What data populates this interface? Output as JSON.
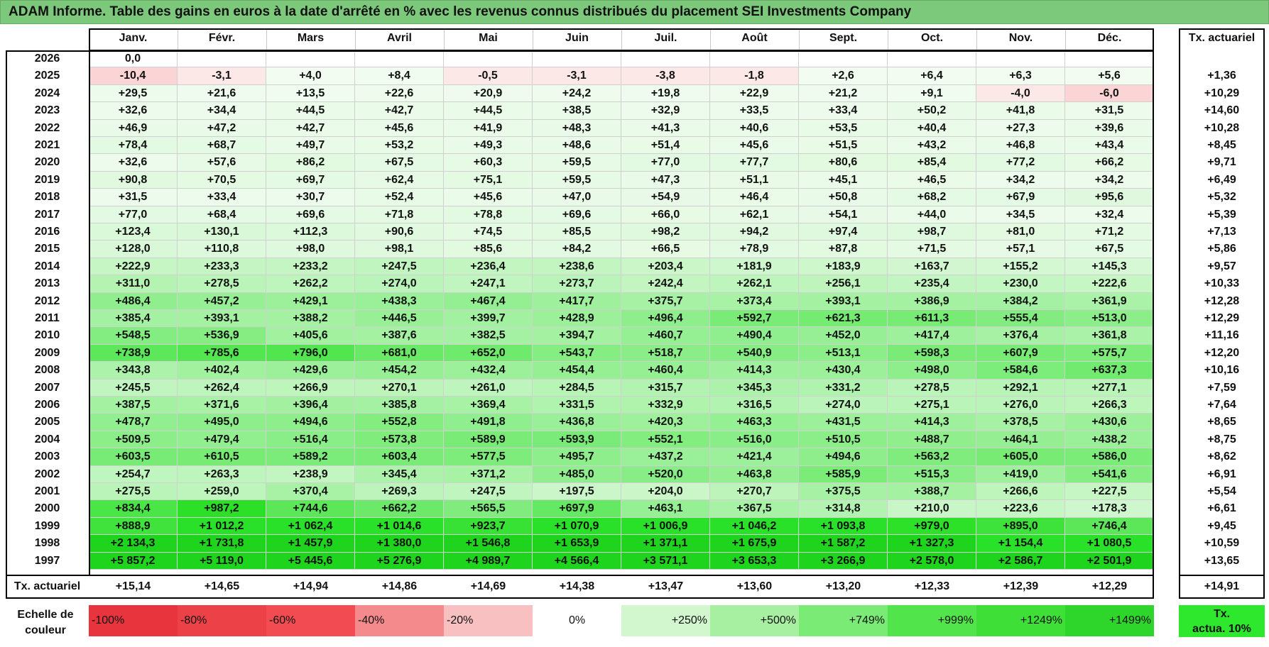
{
  "title": "ADAM Informe. Table des gains en euros à la date d'arrêté en % avec les revenus connus distribués du placement SEI Investments Company",
  "months": [
    "Janv.",
    "Févr.",
    "Mars",
    "Avril",
    "Mai",
    "Juin",
    "Juil.",
    "Août",
    "Sept.",
    "Oct.",
    "Nov.",
    "Déc."
  ],
  "annual_header": "Tx. actuariel",
  "rows": [
    {
      "year": "2026",
      "values": [
        "0,0",
        "",
        "",
        "",
        "",
        "",
        "",
        "",
        "",
        "",
        "",
        ""
      ],
      "annual": ""
    },
    {
      "year": "2025",
      "values": [
        "-10,4",
        "-3,1",
        "+4,0",
        "+8,4",
        "-0,5",
        "-3,1",
        "-3,8",
        "-1,8",
        "+2,6",
        "+6,4",
        "+6,3",
        "+5,6"
      ],
      "annual": "+1,36"
    },
    {
      "year": "2024",
      "values": [
        "+29,5",
        "+21,6",
        "+13,5",
        "+22,6",
        "+20,9",
        "+24,2",
        "+19,8",
        "+22,9",
        "+21,2",
        "+9,1",
        "-4,0",
        "-6,0"
      ],
      "annual": "+10,29"
    },
    {
      "year": "2023",
      "values": [
        "+32,6",
        "+34,4",
        "+44,5",
        "+42,7",
        "+44,5",
        "+38,5",
        "+32,9",
        "+33,5",
        "+33,4",
        "+50,2",
        "+41,8",
        "+31,5"
      ],
      "annual": "+14,60"
    },
    {
      "year": "2022",
      "values": [
        "+46,9",
        "+47,2",
        "+42,7",
        "+45,6",
        "+41,9",
        "+48,3",
        "+41,3",
        "+40,6",
        "+53,5",
        "+40,4",
        "+27,3",
        "+39,6"
      ],
      "annual": "+10,28"
    },
    {
      "year": "2021",
      "values": [
        "+78,4",
        "+68,7",
        "+49,7",
        "+53,2",
        "+49,3",
        "+48,6",
        "+51,4",
        "+45,6",
        "+51,5",
        "+43,2",
        "+46,8",
        "+43,4"
      ],
      "annual": "+8,45"
    },
    {
      "year": "2020",
      "values": [
        "+32,6",
        "+57,6",
        "+86,2",
        "+67,5",
        "+60,3",
        "+59,5",
        "+77,0",
        "+77,7",
        "+80,6",
        "+85,4",
        "+77,2",
        "+66,2"
      ],
      "annual": "+9,71"
    },
    {
      "year": "2019",
      "values": [
        "+90,8",
        "+70,5",
        "+69,7",
        "+62,4",
        "+75,1",
        "+59,5",
        "+47,3",
        "+51,1",
        "+45,1",
        "+46,5",
        "+34,2",
        "+34,2"
      ],
      "annual": "+6,49"
    },
    {
      "year": "2018",
      "values": [
        "+31,5",
        "+33,4",
        "+30,7",
        "+52,4",
        "+45,6",
        "+47,0",
        "+54,9",
        "+46,4",
        "+50,8",
        "+68,2",
        "+67,9",
        "+95,6"
      ],
      "annual": "+5,32"
    },
    {
      "year": "2017",
      "values": [
        "+77,0",
        "+68,4",
        "+69,6",
        "+71,8",
        "+78,8",
        "+69,6",
        "+66,0",
        "+62,1",
        "+54,1",
        "+44,0",
        "+34,5",
        "+32,4"
      ],
      "annual": "+5,39"
    },
    {
      "year": "2016",
      "values": [
        "+123,4",
        "+130,1",
        "+112,3",
        "+90,6",
        "+74,5",
        "+85,5",
        "+98,2",
        "+94,2",
        "+97,4",
        "+98,7",
        "+81,0",
        "+71,2"
      ],
      "annual": "+7,13"
    },
    {
      "year": "2015",
      "values": [
        "+128,0",
        "+110,8",
        "+98,0",
        "+98,1",
        "+85,6",
        "+84,2",
        "+66,5",
        "+78,9",
        "+87,8",
        "+71,5",
        "+57,1",
        "+67,5"
      ],
      "annual": "+5,86"
    },
    {
      "year": "2014",
      "values": [
        "+222,9",
        "+233,3",
        "+233,2",
        "+247,5",
        "+236,4",
        "+238,6",
        "+203,4",
        "+181,9",
        "+183,9",
        "+163,7",
        "+155,2",
        "+145,3"
      ],
      "annual": "+9,57"
    },
    {
      "year": "2013",
      "values": [
        "+311,0",
        "+278,5",
        "+262,2",
        "+274,0",
        "+247,1",
        "+273,7",
        "+242,4",
        "+262,1",
        "+256,1",
        "+235,4",
        "+230,0",
        "+222,6"
      ],
      "annual": "+10,33"
    },
    {
      "year": "2012",
      "values": [
        "+486,4",
        "+457,2",
        "+429,1",
        "+438,3",
        "+467,4",
        "+417,7",
        "+375,7",
        "+373,4",
        "+393,1",
        "+386,9",
        "+384,2",
        "+361,9"
      ],
      "annual": "+12,28"
    },
    {
      "year": "2011",
      "values": [
        "+385,4",
        "+393,1",
        "+388,2",
        "+446,5",
        "+399,7",
        "+428,9",
        "+496,4",
        "+592,7",
        "+621,3",
        "+611,3",
        "+555,4",
        "+513,0"
      ],
      "annual": "+12,29"
    },
    {
      "year": "2010",
      "values": [
        "+548,5",
        "+536,9",
        "+405,6",
        "+387,6",
        "+382,5",
        "+394,7",
        "+460,7",
        "+490,4",
        "+452,0",
        "+417,4",
        "+376,4",
        "+361,8"
      ],
      "annual": "+11,16"
    },
    {
      "year": "2009",
      "values": [
        "+738,9",
        "+785,6",
        "+796,0",
        "+681,0",
        "+652,0",
        "+543,7",
        "+518,7",
        "+540,9",
        "+513,1",
        "+598,3",
        "+607,9",
        "+575,7"
      ],
      "annual": "+12,20"
    },
    {
      "year": "2008",
      "values": [
        "+343,8",
        "+402,4",
        "+429,6",
        "+454,2",
        "+432,4",
        "+454,4",
        "+460,4",
        "+414,3",
        "+430,4",
        "+498,0",
        "+584,6",
        "+637,3"
      ],
      "annual": "+10,16"
    },
    {
      "year": "2007",
      "values": [
        "+245,5",
        "+262,4",
        "+266,9",
        "+270,1",
        "+261,0",
        "+284,5",
        "+315,7",
        "+345,3",
        "+331,2",
        "+278,5",
        "+292,1",
        "+277,1"
      ],
      "annual": "+7,59"
    },
    {
      "year": "2006",
      "values": [
        "+387,5",
        "+371,6",
        "+396,4",
        "+385,8",
        "+369,4",
        "+331,5",
        "+332,9",
        "+316,5",
        "+274,0",
        "+275,1",
        "+276,0",
        "+266,3"
      ],
      "annual": "+7,64"
    },
    {
      "year": "2005",
      "values": [
        "+478,7",
        "+495,0",
        "+494,6",
        "+552,8",
        "+491,8",
        "+436,8",
        "+420,3",
        "+463,3",
        "+431,5",
        "+414,3",
        "+378,5",
        "+430,6"
      ],
      "annual": "+8,65"
    },
    {
      "year": "2004",
      "values": [
        "+509,5",
        "+479,4",
        "+516,4",
        "+573,8",
        "+589,9",
        "+593,9",
        "+552,1",
        "+516,0",
        "+510,5",
        "+488,7",
        "+464,1",
        "+438,2"
      ],
      "annual": "+8,75"
    },
    {
      "year": "2003",
      "values": [
        "+603,5",
        "+610,5",
        "+589,2",
        "+603,4",
        "+577,5",
        "+495,7",
        "+437,2",
        "+421,4",
        "+494,6",
        "+563,2",
        "+605,0",
        "+586,0"
      ],
      "annual": "+8,62"
    },
    {
      "year": "2002",
      "values": [
        "+254,7",
        "+263,3",
        "+238,9",
        "+345,4",
        "+371,2",
        "+485,0",
        "+520,0",
        "+463,8",
        "+585,9",
        "+515,3",
        "+419,0",
        "+541,6"
      ],
      "annual": "+6,91"
    },
    {
      "year": "2001",
      "values": [
        "+275,5",
        "+259,0",
        "+370,4",
        "+269,3",
        "+247,5",
        "+197,5",
        "+204,0",
        "+270,7",
        "+375,5",
        "+388,7",
        "+266,6",
        "+227,5"
      ],
      "annual": "+5,54"
    },
    {
      "year": "2000",
      "values": [
        "+834,4",
        "+987,2",
        "+744,6",
        "+662,2",
        "+565,5",
        "+697,9",
        "+463,1",
        "+367,5",
        "+314,8",
        "+210,0",
        "+223,6",
        "+178,3"
      ],
      "annual": "+6,61"
    },
    {
      "year": "1999",
      "values": [
        "+888,9",
        "+1 012,2",
        "+1 062,4",
        "+1 014,6",
        "+923,7",
        "+1 070,9",
        "+1 006,9",
        "+1 046,2",
        "+1 093,8",
        "+979,0",
        "+895,0",
        "+746,4"
      ],
      "annual": "+9,45"
    },
    {
      "year": "1998",
      "values": [
        "+2 134,3",
        "+1 731,8",
        "+1 457,9",
        "+1 380,0",
        "+1 546,8",
        "+1 653,9",
        "+1 371,1",
        "+1 675,9",
        "+1 587,2",
        "+1 327,3",
        "+1 154,4",
        "+1 080,5"
      ],
      "annual": "+10,59"
    },
    {
      "year": "1997",
      "values": [
        "+5 857,2",
        "+5 119,0",
        "+5 445,6",
        "+5 276,9",
        "+4 989,7",
        "+4 566,4",
        "+3 571,1",
        "+3 653,3",
        "+3 266,9",
        "+2 578,0",
        "+2 586,7",
        "+2 501,9"
      ],
      "annual": "+13,65"
    }
  ],
  "totals": {
    "label": "Tx. actuariel",
    "values": [
      "+15,14",
      "+14,65",
      "+14,94",
      "+14,86",
      "+14,69",
      "+14,38",
      "+13,47",
      "+13,60",
      "+13,20",
      "+12,33",
      "+12,39",
      "+12,29"
    ],
    "annual": "+14,91"
  },
  "scale": {
    "label": "Echelle de couleur",
    "steps": [
      {
        "label": "-100%",
        "color": "#e8343c",
        "align": "left"
      },
      {
        "label": "-80%",
        "color": "#ec4147",
        "align": "left"
      },
      {
        "label": "-60%",
        "color": "#f24c52",
        "align": "left"
      },
      {
        "label": "-40%",
        "color": "#f58a8c",
        "align": "left"
      },
      {
        "label": "-20%",
        "color": "#f9c0c1",
        "align": "left"
      },
      {
        "label": "0%",
        "color": "#ffffff",
        "align": "center"
      },
      {
        "label": "+250%",
        "color": "#d2f7cf",
        "align": "right"
      },
      {
        "label": "+500%",
        "color": "#a7f0a2",
        "align": "right"
      },
      {
        "label": "+749%",
        "color": "#7aeb74",
        "align": "right"
      },
      {
        "label": "+999%",
        "color": "#52e44b",
        "align": "right"
      },
      {
        "label": "+1249%",
        "color": "#3edf37",
        "align": "right"
      },
      {
        "label": "+1499%",
        "color": "#2ed62b",
        "align": "right"
      }
    ],
    "annual_legend_line1": "Tx.",
    "annual_legend_line2": "actua. 10%"
  },
  "colors": {
    "title_bg": "#7dc97b",
    "neg_light": "#fde4e4",
    "neg": "#f9cfcf",
    "pos_max": "#1fe01f"
  }
}
